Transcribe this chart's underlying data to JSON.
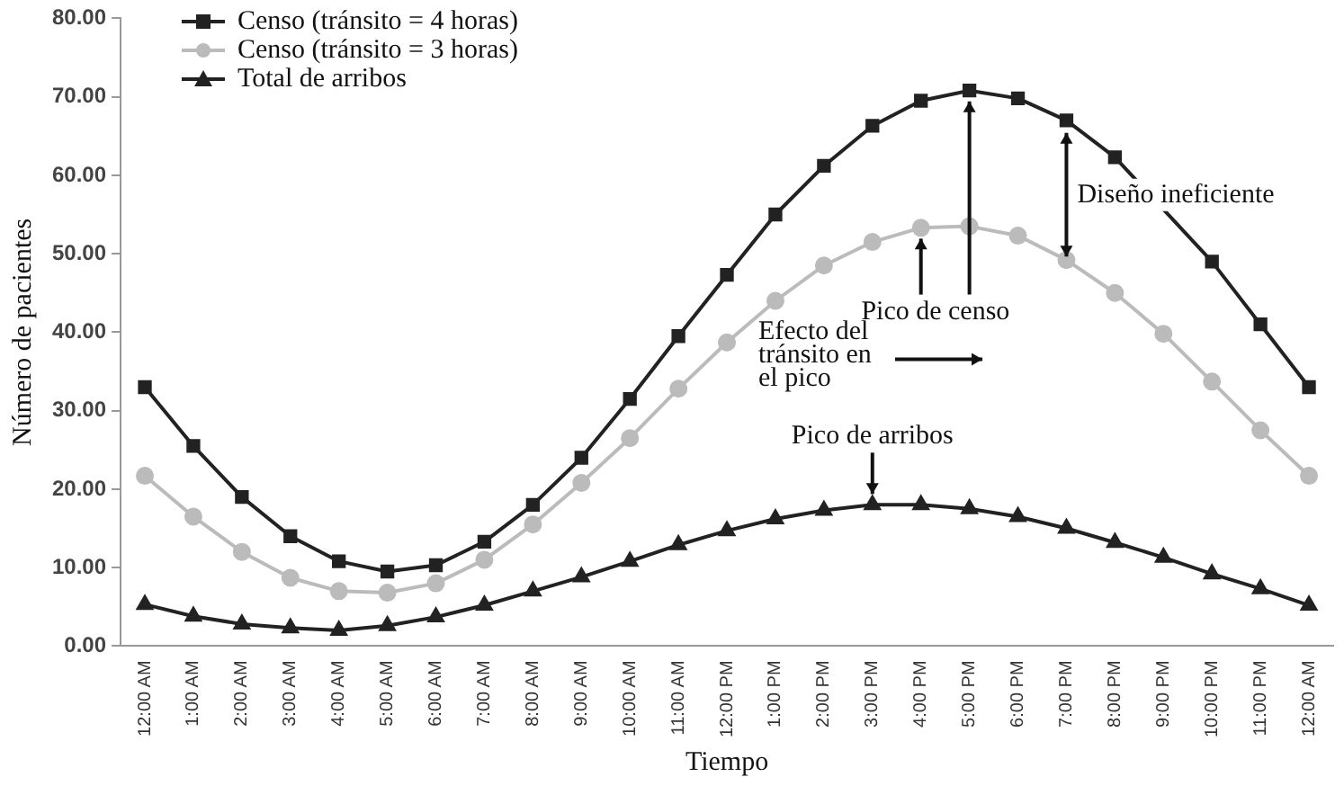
{
  "chart_data": {
    "type": "line",
    "xlabel": "Tiempo",
    "ylabel": "Número de pacientes",
    "categories": [
      "12:00 AM",
      "1:00 AM",
      "2:00 AM",
      "3:00 AM",
      "4:00 AM",
      "5:00 AM",
      "6:00 AM",
      "7:00 AM",
      "8:00 AM",
      "9:00 AM",
      "10:00 AM",
      "11:00 AM",
      "12:00 PM",
      "1:00 PM",
      "2:00 PM",
      "3:00 PM",
      "4:00 PM",
      "5:00 PM",
      "6:00 PM",
      "7:00 PM",
      "8:00 PM",
      "9:00 PM",
      "10:00 PM",
      "11:00 PM",
      "12:00 AM"
    ],
    "series": [
      {
        "name": "Censo (tránsito = 4 horas)",
        "color": "#222222",
        "marker": "square",
        "values": [
          33,
          25.5,
          19,
          14,
          10.8,
          9.5,
          10.3,
          13.3,
          18,
          24,
          31.5,
          39.5,
          47.3,
          55,
          61.2,
          66.3,
          69.5,
          70.8,
          69.8,
          67,
          62.3,
          null,
          49,
          41,
          33
        ]
      },
      {
        "name": "Censo (tránsito = 3 horas)",
        "color": "#bbbbbb",
        "marker": "circle",
        "values": [
          21.7,
          16.5,
          12,
          8.7,
          7,
          6.8,
          8,
          11,
          15.5,
          20.8,
          26.5,
          32.8,
          38.7,
          44,
          48.5,
          51.5,
          53.3,
          53.5,
          52.3,
          49.2,
          45,
          39.8,
          33.7,
          27.5,
          21.7
        ]
      },
      {
        "name": "Total de arribos",
        "color": "#222222",
        "marker": "triangle",
        "values": [
          5.3,
          3.8,
          2.8,
          2.3,
          2,
          2.6,
          3.7,
          5.2,
          7,
          8.8,
          10.8,
          12.9,
          14.7,
          16.2,
          17.3,
          18,
          18,
          17.5,
          16.5,
          15,
          13.2,
          11.3,
          9.2,
          7.3,
          5.2
        ]
      }
    ],
    "ylim": [
      0,
      80
    ],
    "yticks": [
      {
        "value": 0,
        "label": "0.00"
      },
      {
        "value": 10,
        "label": "10.00"
      },
      {
        "value": 20,
        "label": "20.00"
      },
      {
        "value": 30,
        "label": "30.00"
      },
      {
        "value": 40,
        "label": "40.00"
      },
      {
        "value": 50,
        "label": "50.00"
      },
      {
        "value": 60,
        "label": "60.00"
      },
      {
        "value": 70,
        "label": "70.00"
      },
      {
        "value": 80,
        "label": "80.00"
      }
    ],
    "grid": false,
    "legend": "top left",
    "line_style": "solid",
    "annotations": [
      {
        "text": "Pico de censo",
        "x": "5:00 PM",
        "y": 70.8
      },
      {
        "text": "Diseño ineficiente",
        "x": "7:00 PM",
        "y": 67
      },
      "Efecto del tránsito en el pico",
      {
        "text": "Pico de arribos",
        "x": "3:00 PM",
        "y": 18
      }
    ]
  }
}
